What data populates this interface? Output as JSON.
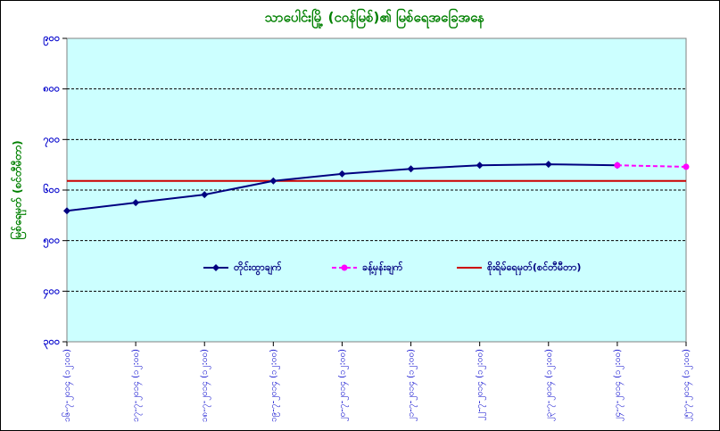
{
  "chart_data": {
    "type": "line",
    "title": "သာပေါင်းမြို့ (ငဝန်မြစ်)၏ မြစ်ရေအခြေအနေ",
    "y_label": "မြစ်ရေမှတ် (စင်တီမီတာ)",
    "categories": [
      "၁၆-၇-၂၀၁၄ (၁၂:၀၀)",
      "၁၇-၇-၂၀၁၄ (၁၂:၀၀)",
      "၁၈-၇-၂၀၁၄ (၁၂:၀၀)",
      "၁၉-၇-၂၀၁၄ (၁၂:၀၀)",
      "၂၀-၇-၂၀၁၄ (၁၂:၀၀)",
      "၂၁-၇-၂၀၁၄ (၁၂:၀၀)",
      "၂၂-၇-၂၀၁၄ (၁၂:၀၀)",
      "၂၃-၇-၂၀၁၄ (၁၂:၀၀)",
      "၂၄-၇-၂၀၁၄ (၁၂:၀၀)",
      "၂၅-၇-၂၀၁၄ (၁၂:၀၀)"
    ],
    "series": [
      {
        "name": "တိုင်းထွာချက်",
        "color": "#000080",
        "marker": "diamond",
        "dash": false,
        "values": [
          559,
          575,
          591,
          618,
          632,
          642,
          649,
          651,
          649,
          null
        ]
      },
      {
        "name": "ခန့်မှန်းချက်",
        "color": "#ff00ff",
        "marker": "circle",
        "dash": true,
        "values": [
          null,
          null,
          null,
          null,
          null,
          null,
          null,
          null,
          649,
          646
        ]
      }
    ],
    "reference_line": {
      "name": "စိုးရိမ်ရေမှတ်(စင်တီမီတာ)",
      "value": 618,
      "color": "#cc0000"
    },
    "ylim": [
      300,
      900
    ],
    "yticks": [
      {
        "value": 300,
        "label": "၃၀၀"
      },
      {
        "value": 400,
        "label": "၄၀၀"
      },
      {
        "value": 500,
        "label": "၅၀၀"
      },
      {
        "value": 600,
        "label": "၆၀၀"
      },
      {
        "value": 700,
        "label": "၇၀၀"
      },
      {
        "value": 800,
        "label": "၈၀၀"
      },
      {
        "value": 900,
        "label": "၉၀၀"
      }
    ],
    "grid": true
  }
}
